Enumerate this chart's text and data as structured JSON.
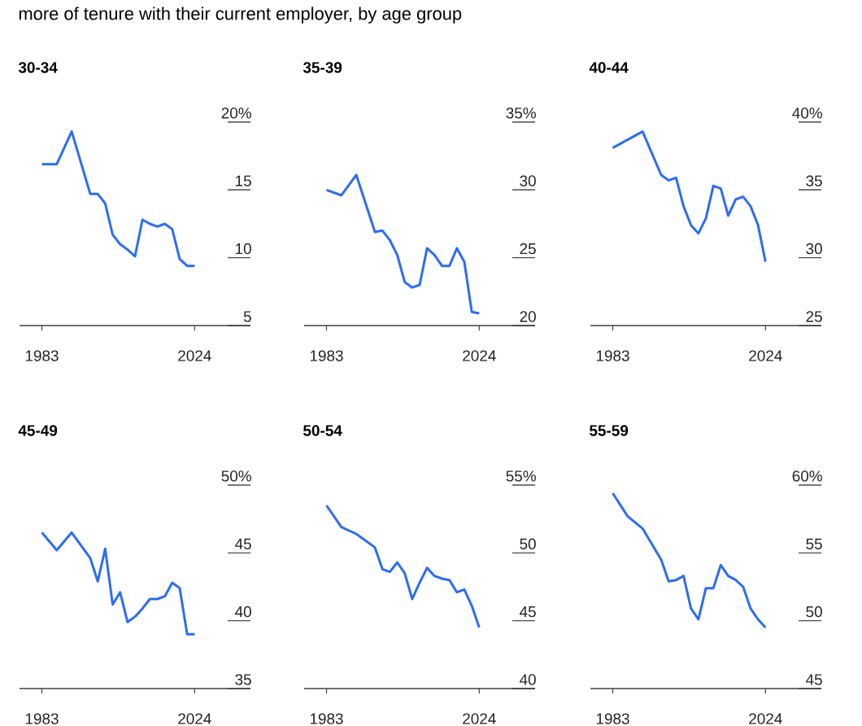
{
  "chart_data": [
    {
      "type": "line",
      "title": "30-34",
      "subtitle": "more of tenure with their current employer, by age group",
      "x": [
        1983,
        1987,
        1991,
        1996,
        1998,
        2000,
        2002,
        2004,
        2006,
        2008,
        2010,
        2012,
        2014,
        2016,
        2018,
        2020,
        2022,
        2024
      ],
      "series": [
        {
          "color": "#2c6cf6",
          "values": [
            16.9,
            16.9,
            19.3,
            14.7,
            14.7,
            14.0,
            11.7,
            11.0,
            10.6,
            10.1,
            12.8,
            12.5,
            12.3,
            12.5,
            12.1,
            9.9,
            9.4,
            9.4
          ]
        }
      ],
      "xlim": [
        1977,
        2039
      ],
      "ylim": [
        5,
        20
      ],
      "xticks": [
        1983,
        2024
      ],
      "yticks": [
        {
          "value": 20,
          "label": "20%"
        },
        15,
        10,
        5
      ]
    },
    {
      "type": "line",
      "title": "35-39",
      "x": [
        1983,
        1987,
        1991,
        1996,
        1998,
        2000,
        2002,
        2004,
        2006,
        2008,
        2010,
        2012,
        2014,
        2016,
        2018,
        2020,
        2022,
        2024
      ],
      "series": [
        {
          "color": "#2c6cf6",
          "values": [
            30.0,
            29.6,
            31.1,
            26.9,
            27.0,
            26.3,
            25.2,
            23.2,
            22.8,
            23.0,
            25.7,
            25.2,
            24.4,
            24.4,
            25.7,
            24.7,
            21.0,
            20.9
          ]
        }
      ],
      "xlim": [
        1977,
        2039
      ],
      "ylim": [
        20,
        35
      ],
      "xticks": [
        1983,
        2024
      ],
      "yticks": [
        {
          "value": 35,
          "label": "35%"
        },
        30,
        25,
        20
      ]
    },
    {
      "type": "line",
      "title": "40-44",
      "x": [
        1983,
        1987,
        1991,
        1996,
        1998,
        2000,
        2002,
        2004,
        2006,
        2008,
        2010,
        2012,
        2014,
        2016,
        2018,
        2020,
        2022,
        2024
      ],
      "series": [
        {
          "color": "#2c6cf6",
          "values": [
            38.1,
            38.7,
            39.3,
            36.1,
            35.7,
            35.9,
            33.8,
            32.4,
            31.8,
            32.9,
            35.3,
            35.1,
            33.1,
            34.3,
            34.5,
            33.8,
            32.4,
            29.7
          ]
        }
      ],
      "xlim": [
        1977,
        2039
      ],
      "ylim": [
        25,
        40
      ],
      "xticks": [
        1983,
        2024
      ],
      "yticks": [
        {
          "value": 40,
          "label": "40%"
        },
        35,
        30,
        25
      ]
    },
    {
      "type": "line",
      "title": "45-49",
      "x": [
        1983,
        1987,
        1991,
        1996,
        1998,
        2000,
        2002,
        2004,
        2006,
        2008,
        2010,
        2012,
        2014,
        2016,
        2018,
        2020,
        2022,
        2024
      ],
      "series": [
        {
          "color": "#2c6cf6",
          "values": [
            46.5,
            45.2,
            46.5,
            44.6,
            42.9,
            45.3,
            41.2,
            42.1,
            39.9,
            40.3,
            40.9,
            41.6,
            41.6,
            41.8,
            42.8,
            42.4,
            39.0,
            39.0
          ]
        }
      ],
      "xlim": [
        1977,
        2039
      ],
      "ylim": [
        35,
        50
      ],
      "xticks": [
        1983,
        2024
      ],
      "yticks": [
        {
          "value": 50,
          "label": "50%"
        },
        45,
        40,
        35
      ]
    },
    {
      "type": "line",
      "title": "50-54",
      "x": [
        1983,
        1987,
        1991,
        1996,
        1998,
        2000,
        2002,
        2004,
        2006,
        2008,
        2010,
        2012,
        2014,
        2016,
        2018,
        2020,
        2022,
        2024
      ],
      "series": [
        {
          "color": "#2c6cf6",
          "values": [
            53.5,
            51.9,
            51.4,
            50.4,
            48.8,
            48.6,
            49.3,
            48.5,
            46.6,
            47.8,
            48.9,
            48.3,
            48.1,
            48.0,
            47.1,
            47.3,
            46.1,
            44.5
          ]
        }
      ],
      "xlim": [
        1977,
        2039
      ],
      "ylim": [
        40,
        55
      ],
      "xticks": [
        1983,
        2024
      ],
      "yticks": [
        {
          "value": 55,
          "label": "55%"
        },
        50,
        45,
        40
      ]
    },
    {
      "type": "line",
      "title": "55-59",
      "x": [
        1983,
        1987,
        1991,
        1996,
        1998,
        2000,
        2002,
        2004,
        2006,
        2008,
        2010,
        2012,
        2014,
        2016,
        2018,
        2020,
        2022,
        2024
      ],
      "series": [
        {
          "color": "#2c6cf6",
          "values": [
            59.4,
            57.7,
            56.8,
            54.5,
            52.9,
            53.0,
            53.3,
            50.9,
            50.1,
            52.4,
            52.4,
            54.1,
            53.3,
            53.0,
            52.5,
            50.9,
            50.1,
            49.5
          ]
        }
      ],
      "xlim": [
        1977,
        2039
      ],
      "ylim": [
        45,
        60
      ],
      "xticks": [
        1983,
        2024
      ],
      "yticks": [
        {
          "value": 60,
          "label": "60%"
        },
        55,
        50,
        45
      ]
    }
  ]
}
